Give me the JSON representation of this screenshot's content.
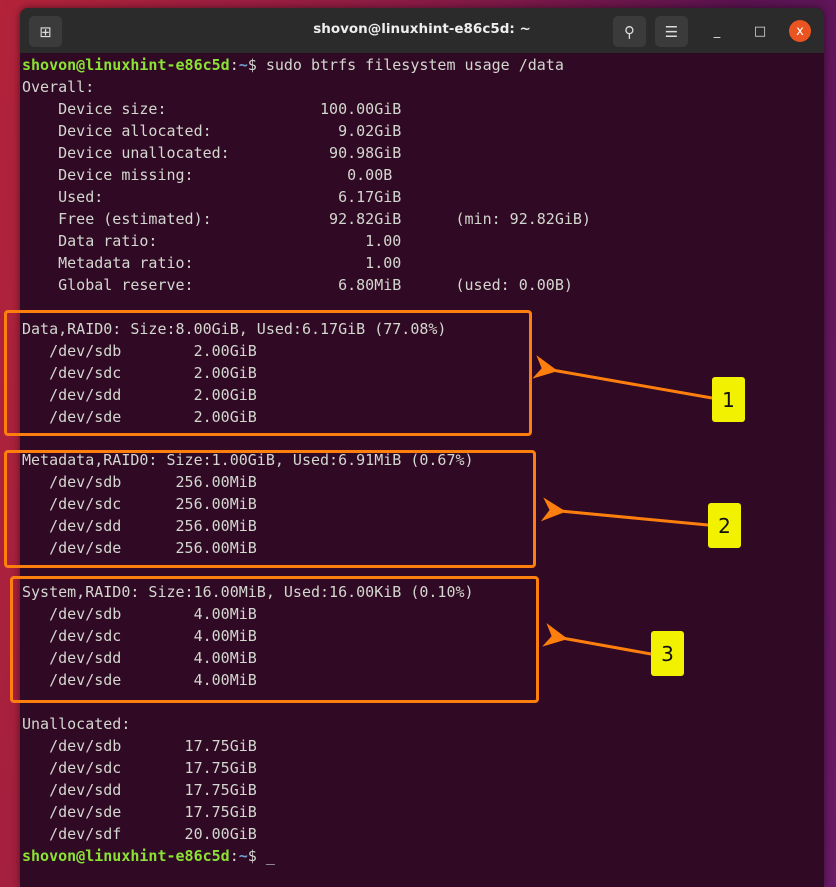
{
  "window": {
    "title": "shovon@linuxhint-e86c5d: ~"
  },
  "titlebar": {
    "new_tab_icon": "new-tab-icon",
    "search_icon": "search-icon",
    "menu_icon": "hamburger-menu-icon",
    "minimize": "_",
    "maximize": "□",
    "close": "x"
  },
  "prompt": {
    "user_host": "shovon@linuxhint-e86c5d",
    "sep": ":",
    "path": "~",
    "sym": "$ "
  },
  "command": "sudo btrfs filesystem usage /data",
  "output": [
    "Overall:",
    "    Device size:                 100.00GiB",
    "    Device allocated:              9.02GiB",
    "    Device unallocated:           90.98GiB",
    "    Device missing:                 0.00B",
    "    Used:                          6.17GiB",
    "    Free (estimated):             92.82GiB      (min: 92.82GiB)",
    "    Data ratio:                       1.00",
    "    Metadata ratio:                   1.00",
    "    Global reserve:                6.80MiB      (used: 0.00B)",
    "",
    "Data,RAID0: Size:8.00GiB, Used:6.17GiB (77.08%)",
    "   /dev/sdb        2.00GiB",
    "   /dev/sdc        2.00GiB",
    "   /dev/sdd        2.00GiB",
    "   /dev/sde        2.00GiB",
    "",
    "Metadata,RAID0: Size:1.00GiB, Used:6.91MiB (0.67%)",
    "   /dev/sdb      256.00MiB",
    "   /dev/sdc      256.00MiB",
    "   /dev/sdd      256.00MiB",
    "   /dev/sde      256.00MiB",
    "",
    "System,RAID0: Size:16.00MiB, Used:16.00KiB (0.10%)",
    "   /dev/sdb        4.00MiB",
    "   /dev/sdc        4.00MiB",
    "   /dev/sdd        4.00MiB",
    "   /dev/sde        4.00MiB",
    "",
    "Unallocated:",
    "   /dev/sdb       17.75GiB",
    "   /dev/sdc       17.75GiB",
    "   /dev/sdd       17.75GiB",
    "   /dev/sde       17.75GiB",
    "   /dev/sdf       20.00GiB"
  ],
  "cursor": "_",
  "annotations": {
    "labels": [
      "1",
      "2",
      "3"
    ],
    "color": "#ff7f0e",
    "label_color": "#f2f200"
  },
  "colors": {
    "terminal_bg": "#300a24",
    "prompt_user": "#8ae234",
    "prompt_path": "#729fcf"
  }
}
